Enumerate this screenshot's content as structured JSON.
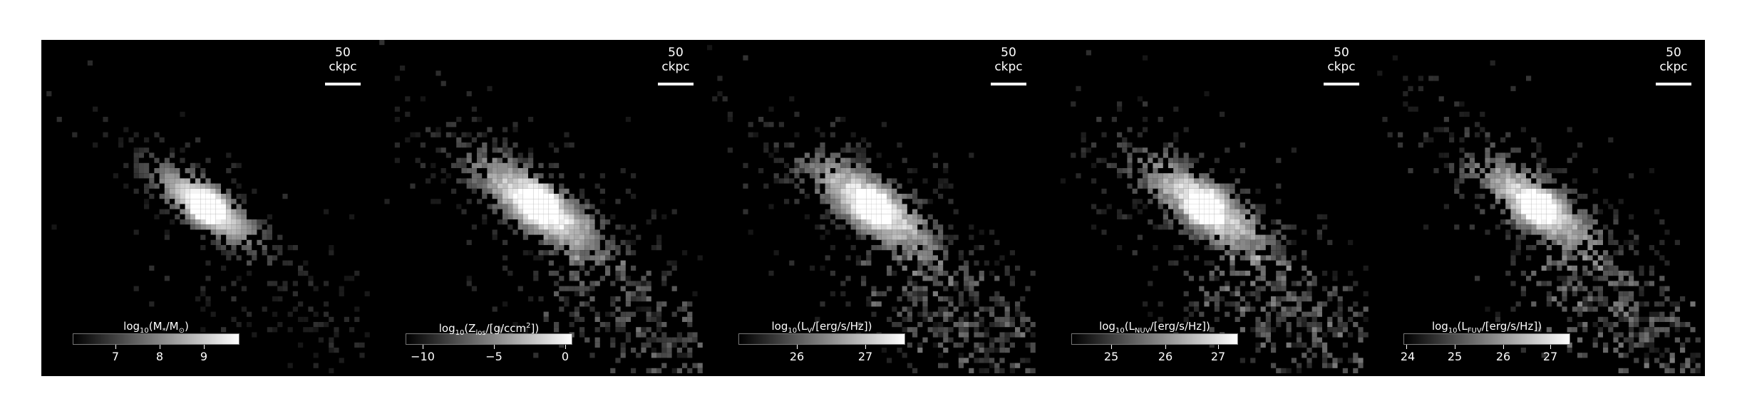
{
  "panels": [
    {
      "scalebar": "50 ckpc",
      "colorbar": {
        "label_pre": "log",
        "label_sub": "10",
        "label_post": "(M",
        "label_sub2": "*",
        "label_tail": "/M",
        "label_sub3": "⊙",
        "label_end": ")",
        "ticks": [
          "7",
          "8",
          "9"
        ]
      },
      "map": {
        "diffuse": 0.25,
        "core": 1.0,
        "spread": 1.0
      }
    },
    {
      "scalebar": "50 ckpc",
      "colorbar": {
        "label_pre": "log",
        "label_sub": "10",
        "label_post": "(Z",
        "label_sub2": "los",
        "label_tail": "/[g/ccm",
        "label_sub3": "2",
        "label_end": "])",
        "ticks": [
          "−10",
          "−5",
          "0"
        ]
      },
      "map": {
        "diffuse": 0.55,
        "core": 1.0,
        "spread": 1.35
      }
    },
    {
      "scalebar": "50 ckpc",
      "colorbar": {
        "label_pre": "log",
        "label_sub": "10",
        "label_post": "(L",
        "label_sub2": "V",
        "label_tail": "/[erg/s/Hz]",
        "label_sub3": "",
        "label_end": ")",
        "ticks": [
          "26",
          "27"
        ]
      },
      "map": {
        "diffuse": 0.6,
        "core": 0.95,
        "spread": 1.3
      }
    },
    {
      "scalebar": "50 ckpc",
      "colorbar": {
        "label_pre": "log",
        "label_sub": "10",
        "label_post": "(L",
        "label_sub2": "NUV",
        "label_tail": "/[erg/s/Hz]",
        "label_sub3": "",
        "label_end": ")",
        "ticks": [
          "25",
          "26",
          "27"
        ]
      },
      "map": {
        "diffuse": 0.62,
        "core": 0.9,
        "spread": 1.3
      }
    },
    {
      "scalebar": "50 ckpc",
      "colorbar": {
        "label_pre": "log",
        "label_sub": "10",
        "label_post": "(L",
        "label_sub2": "FUV",
        "label_tail": "/[erg/s/Hz]",
        "label_sub3": "",
        "label_end": ")",
        "ticks": [
          "24",
          "25",
          "26",
          "27"
        ]
      },
      "map": {
        "diffuse": 0.65,
        "core": 0.85,
        "spread": 1.3
      }
    }
  ]
}
